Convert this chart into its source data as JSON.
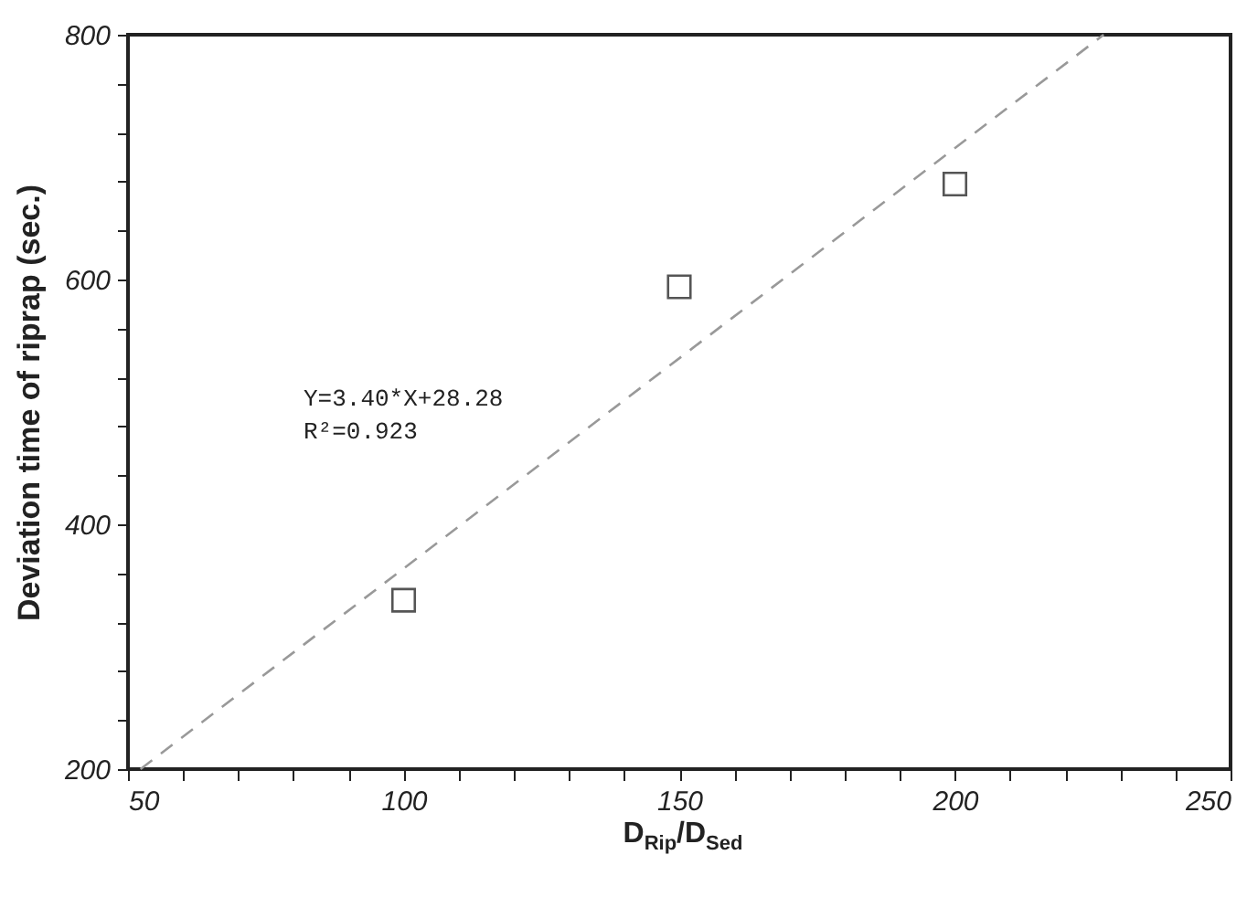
{
  "chart_data": {
    "type": "scatter",
    "xlabel": "D$_{Rip}$/D$_{Sed}$",
    "ylabel": "Deviation time of riprap (sec.)",
    "marker": "square",
    "xlim": [
      50,
      250
    ],
    "ylim": [
      200,
      800
    ],
    "xticks": [
      50,
      {
        "value": 60,
        "label": null
      },
      {
        "value": 70,
        "label": null
      },
      {
        "value": 80,
        "label": null
      },
      {
        "value": 90,
        "label": null
      },
      100,
      {
        "value": 110,
        "label": null
      },
      {
        "value": 120,
        "label": null
      },
      {
        "value": 130,
        "label": null
      },
      {
        "value": 140,
        "label": null
      },
      150,
      {
        "value": 160,
        "label": null
      },
      {
        "value": 170,
        "label": null
      },
      {
        "value": 180,
        "label": null
      },
      {
        "value": 190,
        "label": null
      },
      200,
      {
        "value": 210,
        "label": null
      },
      {
        "value": 220,
        "label": null
      },
      {
        "value": 230,
        "label": null
      },
      {
        "value": 240,
        "label": null
      },
      250
    ],
    "yticks": [
      200,
      {
        "value": 240,
        "label": null
      },
      {
        "value": 280,
        "label": null
      },
      {
        "value": 320,
        "label": null
      },
      {
        "value": 360,
        "label": null
      },
      400,
      {
        "value": 440,
        "label": null
      },
      {
        "value": 480,
        "label": null
      },
      {
        "value": 520,
        "label": null
      },
      {
        "value": 560,
        "label": null
      },
      600,
      {
        "value": 640,
        "label": null
      },
      {
        "value": 680,
        "label": null
      },
      {
        "value": 720,
        "label": null
      },
      {
        "value": 760,
        "label": null
      },
      800
    ],
    "annotations": [
      "Y=3.40*X+28.28",
      "R²=0.923"
    ],
    "series": [
      {
        "color": "#555555",
        "x": [
          100,
          150,
          200
        ],
        "values": [
          338,
          594,
          678
        ]
      },
      {
        "type": "line",
        "color": "#999999",
        "line_style": "dashed",
        "marker": "none",
        "x": [
          52.27,
          226.98
        ],
        "values": [
          200,
          800
        ]
      }
    ]
  }
}
